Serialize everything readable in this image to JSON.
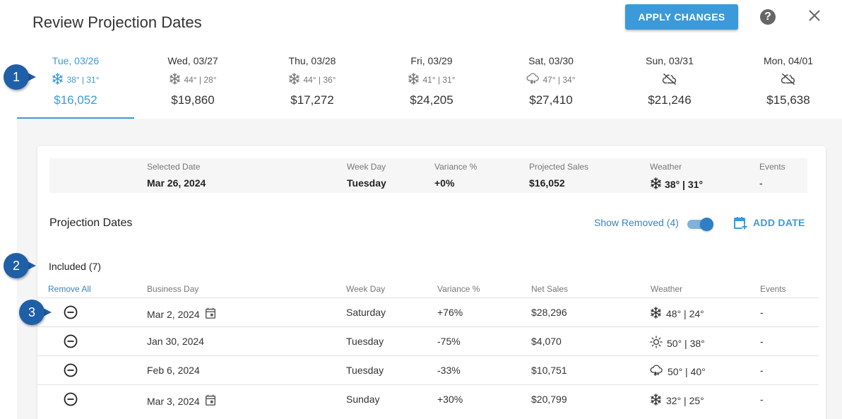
{
  "header": {
    "title": "Review Projection Dates",
    "apply_label": "APPLY CHANGES",
    "help_glyph": "?"
  },
  "days": [
    {
      "name": "Tue, 03/26",
      "icon": "snowflake-icon",
      "temps": "38° | 31°",
      "amount": "$16,052",
      "active": true
    },
    {
      "name": "Wed, 03/27",
      "icon": "snowflake-icon",
      "temps": "44° | 28°",
      "amount": "$19,860"
    },
    {
      "name": "Thu, 03/28",
      "icon": "snowflake-icon",
      "temps": "44° | 36°",
      "amount": "$17,272"
    },
    {
      "name": "Fri, 03/29",
      "icon": "snowflake-icon",
      "temps": "41° | 31°",
      "amount": "$24,205"
    },
    {
      "name": "Sat, 03/30",
      "icon": "snow-cloud-icon",
      "temps": "47° | 34°",
      "amount": "$27,410"
    },
    {
      "name": "Sun, 03/31",
      "icon": "cloud-off-icon",
      "temps": "",
      "amount": "$21,246"
    },
    {
      "name": "Mon, 04/01",
      "icon": "cloud-off-icon",
      "temps": "",
      "amount": "$15,638"
    }
  ],
  "summary": {
    "selected_date_label": "Selected Date",
    "selected_date": "Mar 26, 2024",
    "week_day_label": "Week Day",
    "week_day": "Tuesday",
    "variance_label": "Variance %",
    "variance": "+0%",
    "projected_label": "Projected Sales",
    "projected": "$16,052",
    "weather_label": "Weather",
    "weather": "38° | 31°",
    "events_label": "Events",
    "events": "-"
  },
  "projection": {
    "title": "Projection Dates",
    "show_removed": "Show Removed (4)",
    "add_date": "ADD DATE",
    "included": "Included (7)",
    "remove_all": "Remove All",
    "headers": {
      "business_day": "Business Day",
      "week_day": "Week Day",
      "variance": "Variance %",
      "net_sales": "Net Sales",
      "weather": "Weather",
      "events": "Events"
    },
    "rows": [
      {
        "date": "Mar 2, 2024",
        "calendar": true,
        "week_day": "Saturday",
        "variance": "+76%",
        "net_sales": "$28,296",
        "weather_icon": "snowflake-icon",
        "weather": "48° | 24°",
        "events": "-"
      },
      {
        "date": "Jan 30, 2024",
        "calendar": false,
        "week_day": "Tuesday",
        "variance": "-75%",
        "net_sales": "$4,070",
        "weather_icon": "sun-icon",
        "weather": "50° | 38°",
        "events": "-"
      },
      {
        "date": "Feb 6, 2024",
        "calendar": false,
        "week_day": "Tuesday",
        "variance": "-33%",
        "net_sales": "$10,751",
        "weather_icon": "snow-cloud-icon",
        "weather": "50° | 40°",
        "events": "-"
      },
      {
        "date": "Mar 3, 2024",
        "calendar": true,
        "week_day": "Sunday",
        "variance": "+30%",
        "net_sales": "$20,799",
        "weather_icon": "snowflake-icon",
        "weather": "32° | 25°",
        "events": "-"
      }
    ]
  },
  "callouts": [
    "1",
    "2",
    "3"
  ],
  "colors": {
    "accent": "#3c9ad8",
    "callout": "#1f5fa8",
    "link": "#3c82c0"
  }
}
